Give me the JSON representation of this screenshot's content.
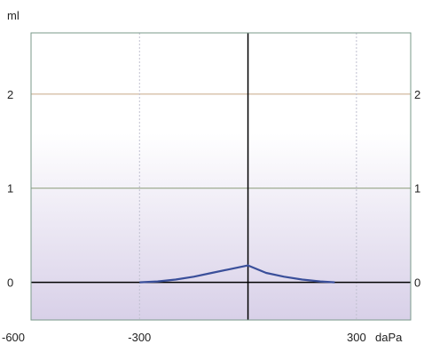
{
  "chart_data": {
    "type": "line",
    "ylabel": "ml",
    "xlabel": "daPa",
    "xlim": [
      -600,
      450
    ],
    "ylim": [
      -0.4,
      2.65
    ],
    "x_ticks": [
      "-600",
      "-300",
      "300"
    ],
    "y_ticks": [
      "0",
      "1",
      "2"
    ],
    "y_ticks_right": [
      "0",
      "1",
      "2"
    ],
    "grid": true,
    "series": [
      {
        "color": "#3a4f9a",
        "x": [
          -300,
          -250,
          -200,
          -150,
          -100,
          -50,
          0,
          50,
          100,
          150,
          200,
          240
        ],
        "y": [
          0,
          0.01,
          0.03,
          0.06,
          0.1,
          0.14,
          0.18,
          0.1,
          0.06,
          0.03,
          0.01,
          0
        ]
      }
    ],
    "colors": {
      "axis": "#000000",
      "frame": "#7a9a8a",
      "gridline_2": "#c8a888",
      "gridline_1": "#8a9a78",
      "vertical_guide": "#c0c0d0",
      "background_top": "#ffffff",
      "background_bottom": "#d8d0e8"
    }
  }
}
